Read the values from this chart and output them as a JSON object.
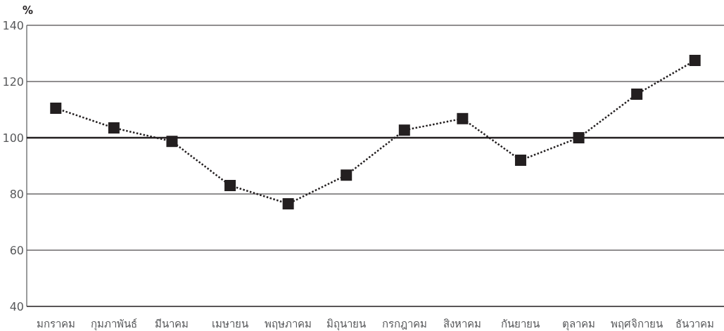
{
  "chart_data": {
    "type": "line",
    "ylabel": "%",
    "categories": [
      "มกราคม",
      "กุมภาพันธ์",
      "มีนาคม",
      "เมษายน",
      "พฤษภาคม",
      "มิถุนายน",
      "กรกฎาคม",
      "สิงหาคม",
      "กันยายน",
      "ตุลาคม",
      "พฤศจิกายน",
      "ธันวาคม"
    ],
    "series": [
      {
        "color": "#231f20",
        "values": [
          110.5,
          103.5,
          98.7,
          83,
          76.5,
          86.7,
          102.7,
          106.8,
          92,
          100,
          115.5,
          127.5
        ]
      }
    ],
    "ylim": [
      40,
      140
    ],
    "yticks": [
      40,
      60,
      80,
      100,
      120,
      140
    ],
    "grid": "y",
    "marker": "square",
    "line_style": "dotted",
    "ref_lines": [
      {
        "axis": "y",
        "value": 100,
        "color": "#231f20"
      }
    ]
  }
}
